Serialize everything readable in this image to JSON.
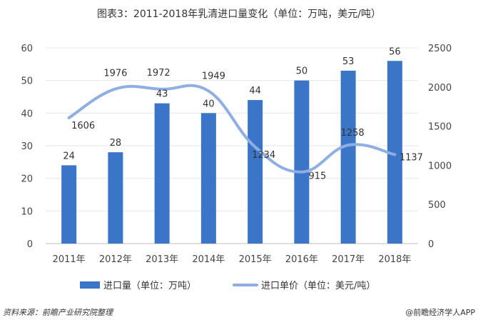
{
  "chart_data": {
    "type": "bar",
    "title": "图表3：2011-2018年乳清进口量变化（单位：万吨，美元/吨）",
    "categories": [
      "2011年",
      "2012年",
      "2013年",
      "2014年",
      "2015年",
      "2016年",
      "2017年",
      "2018年"
    ],
    "series": [
      {
        "name": "进口量（单位：万吨）",
        "kind": "bar",
        "axis": "left",
        "color": "#3b75c8",
        "values": [
          24,
          28,
          43,
          40,
          44,
          50,
          53,
          56
        ]
      },
      {
        "name": "进口单价（单位：美元/吨）",
        "kind": "line",
        "axis": "right",
        "color": "#8eaee4",
        "values": [
          1606,
          1976,
          1972,
          1949,
          1234,
          915,
          1258,
          1137
        ]
      }
    ],
    "y_left": {
      "ylim": [
        0,
        60
      ],
      "ticks": [
        0,
        10,
        20,
        30,
        40,
        50,
        60
      ]
    },
    "y_right": {
      "ylim": [
        0,
        2500
      ],
      "ticks": [
        0,
        500,
        1000,
        1500,
        2000,
        2500
      ]
    },
    "grid": true,
    "legend_position": "bottom"
  },
  "footer": {
    "source": "资料来源：前瞻产业研究院整理",
    "brand": "@前瞻经济学人APP"
  }
}
